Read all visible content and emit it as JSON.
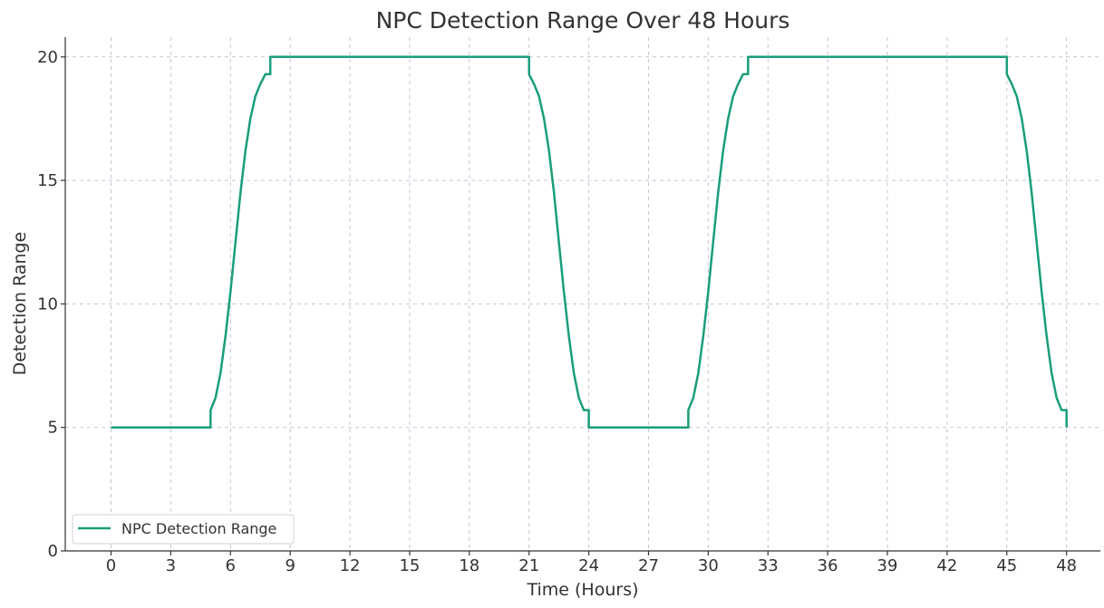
{
  "chart_data": {
    "type": "line",
    "title": "NPC Detection Range Over 48 Hours",
    "xlabel": "Time (Hours)",
    "ylabel": "Detection Range",
    "xlim": [
      -2.3,
      49.7
    ],
    "ylim": [
      0,
      20.8
    ],
    "xticks": [
      0,
      3,
      6,
      9,
      12,
      15,
      18,
      21,
      24,
      27,
      30,
      33,
      36,
      39,
      42,
      45,
      48
    ],
    "yticks": [
      0,
      5,
      10,
      15,
      20
    ],
    "grid": true,
    "legend_position": "lower-left",
    "series": [
      {
        "name": "NPC Detection Range",
        "color": "#1a9e7a",
        "x": [
          0,
          5,
          5,
          5.25,
          5.5,
          5.75,
          6,
          6.25,
          6.5,
          6.75,
          7,
          7.25,
          7.5,
          7.75,
          8,
          8,
          21,
          21,
          21.25,
          21.5,
          21.75,
          22,
          22.25,
          22.5,
          22.75,
          23,
          23.25,
          23.5,
          23.75,
          24,
          24,
          29,
          29,
          29.25,
          29.5,
          29.75,
          30,
          30.25,
          30.5,
          30.75,
          31,
          31.25,
          31.5,
          31.75,
          32,
          32,
          45,
          45,
          45.25,
          45.5,
          45.75,
          46,
          46.25,
          46.5,
          46.75,
          47,
          47.25,
          47.5,
          47.75,
          48,
          48
        ],
        "y": [
          5,
          5,
          5.7,
          6.2,
          7.2,
          8.7,
          10.5,
          12.5,
          14.5,
          16.2,
          17.5,
          18.4,
          18.9,
          19.3,
          19.3,
          20,
          20,
          19.3,
          18.9,
          18.4,
          17.5,
          16.2,
          14.5,
          12.5,
          10.5,
          8.7,
          7.2,
          6.2,
          5.7,
          5.7,
          5,
          5,
          5.7,
          6.2,
          7.2,
          8.7,
          10.5,
          12.5,
          14.5,
          16.2,
          17.5,
          18.4,
          18.9,
          19.3,
          19.3,
          20,
          20,
          19.3,
          18.9,
          18.4,
          17.5,
          16.2,
          14.5,
          12.5,
          10.5,
          8.7,
          7.2,
          6.2,
          5.7,
          5.7,
          5
        ]
      }
    ]
  }
}
